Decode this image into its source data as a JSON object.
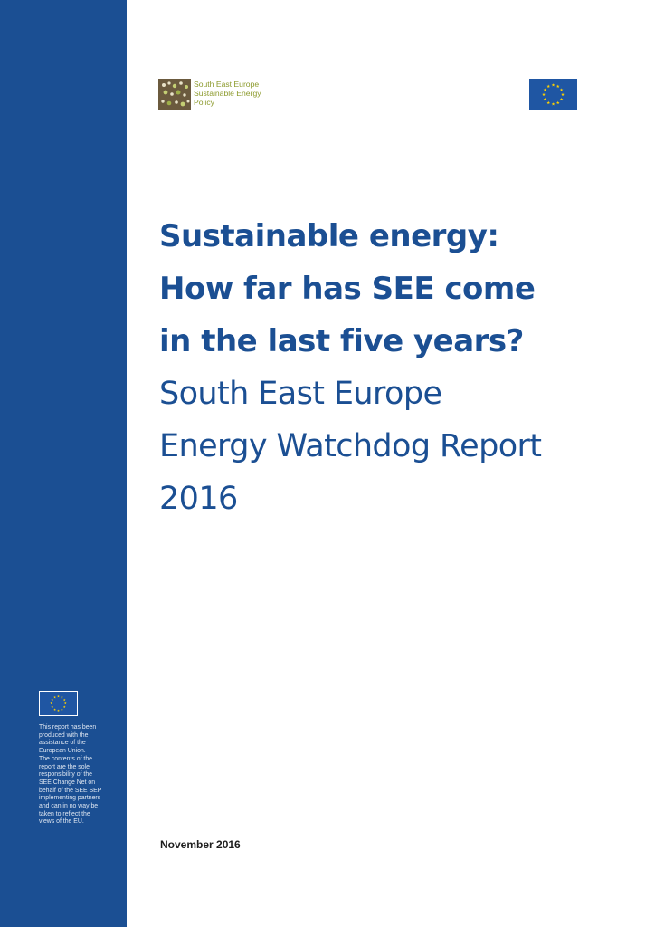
{
  "sidebar": {
    "flag_icon": "eu-flag",
    "disclaimer": "This report has been\nproduced with the\nassistance of the\nEuropean Union.\nThe contents of the\nreport are the sole\nresponsibility of the\nSEE Change Net on\nbehalf of the SEE SEP\nimplementing partners\nand can in no way be\ntaken to reflect the\nviews of the EU."
  },
  "header": {
    "logo_lines": [
      "South East Europe",
      "Sustainable Energy",
      "Policy"
    ],
    "flag_icon": "eu-flag"
  },
  "title_lines": [
    "Sustainable energy:",
    "How far has SEE come",
    "in the last five years?"
  ],
  "subtitle_lines": [
    "South East Europe",
    "Energy Watchdog Report",
    "2016"
  ],
  "date": "November 2016",
  "colors": {
    "sidebar": "#1b4f93",
    "title": "#1b4f93",
    "brand_text": "#8c9a2c",
    "eu_blue": "#1f56a3",
    "eu_star": "#ffd200"
  }
}
